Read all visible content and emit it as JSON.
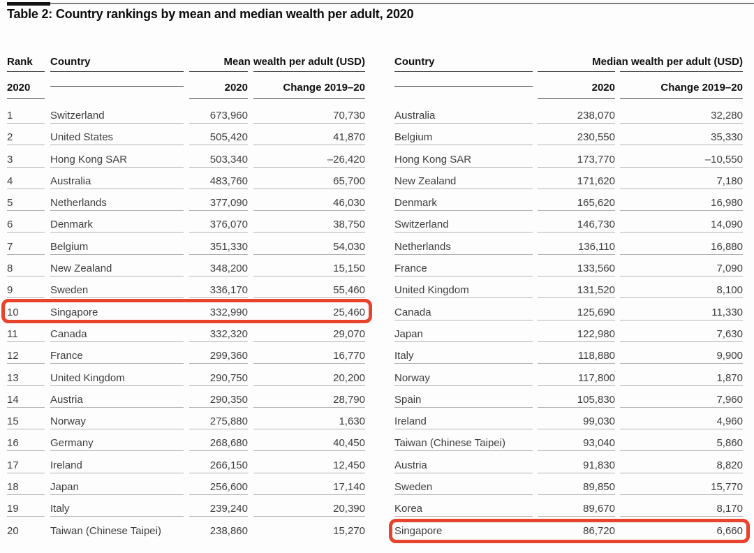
{
  "title": "Table 2: Country rankings by mean and median wealth per adult, 2020",
  "highlight_color": "#e8432d",
  "left_table": {
    "headers": {
      "rank": "Rank",
      "country": "Country",
      "group": "Mean wealth per adult (USD)",
      "rank_sub": "2020",
      "year": "2020",
      "change": "Change 2019–20"
    },
    "highlight_row_index": 9,
    "rows": [
      {
        "rank": "1",
        "country": "Switzerland",
        "value": "673,960",
        "change": "70,730"
      },
      {
        "rank": "2",
        "country": "United States",
        "value": "505,420",
        "change": "41,870"
      },
      {
        "rank": "3",
        "country": "Hong Kong SAR",
        "value": "503,340",
        "change": "–26,420"
      },
      {
        "rank": "4",
        "country": "Australia",
        "value": "483,760",
        "change": "65,700"
      },
      {
        "rank": "5",
        "country": "Netherlands",
        "value": "377,090",
        "change": "46,030"
      },
      {
        "rank": "6",
        "country": "Denmark",
        "value": "376,070",
        "change": "38,750"
      },
      {
        "rank": "7",
        "country": "Belgium",
        "value": "351,330",
        "change": "54,030"
      },
      {
        "rank": "8",
        "country": "New Zealand",
        "value": "348,200",
        "change": "15,150"
      },
      {
        "rank": "9",
        "country": "Sweden",
        "value": "336,170",
        "change": "55,460"
      },
      {
        "rank": "10",
        "country": "Singapore",
        "value": "332,990",
        "change": "25,460"
      },
      {
        "rank": "11",
        "country": "Canada",
        "value": "332,320",
        "change": "29,070"
      },
      {
        "rank": "12",
        "country": "France",
        "value": "299,360",
        "change": "16,770"
      },
      {
        "rank": "13",
        "country": "United Kingdom",
        "value": "290,750",
        "change": "20,200"
      },
      {
        "rank": "14",
        "country": "Austria",
        "value": "290,350",
        "change": "28,790"
      },
      {
        "rank": "15",
        "country": "Norway",
        "value": "275,880",
        "change": "1,630"
      },
      {
        "rank": "16",
        "country": "Germany",
        "value": "268,680",
        "change": "40,450"
      },
      {
        "rank": "17",
        "country": "Ireland",
        "value": "266,150",
        "change": "12,450"
      },
      {
        "rank": "18",
        "country": "Japan",
        "value": "256,600",
        "change": "17,140"
      },
      {
        "rank": "19",
        "country": "Italy",
        "value": "239,240",
        "change": "20,390"
      },
      {
        "rank": "20",
        "country": "Taiwan (Chinese Taipei)",
        "value": "238,860",
        "change": "15,270"
      }
    ]
  },
  "right_table": {
    "headers": {
      "country": "Country",
      "group": "Median wealth per adult (USD)",
      "year": "2020",
      "change": "Change 2019–20"
    },
    "highlight_row_index": 19,
    "rows": [
      {
        "country": "Australia",
        "value": "238,070",
        "change": "32,280"
      },
      {
        "country": "Belgium",
        "value": "230,550",
        "change": "35,330"
      },
      {
        "country": "Hong Kong SAR",
        "value": "173,770",
        "change": "–10,550"
      },
      {
        "country": "New Zealand",
        "value": "171,620",
        "change": "7,180"
      },
      {
        "country": "Denmark",
        "value": "165,620",
        "change": "16,980"
      },
      {
        "country": "Switzerland",
        "value": "146,730",
        "change": "14,090"
      },
      {
        "country": "Netherlands",
        "value": "136,110",
        "change": "16,880"
      },
      {
        "country": "France",
        "value": "133,560",
        "change": "7,090"
      },
      {
        "country": "United Kingdom",
        "value": "131,520",
        "change": "8,100"
      },
      {
        "country": "Canada",
        "value": "125,690",
        "change": "11,330"
      },
      {
        "country": "Japan",
        "value": "122,980",
        "change": "7,630"
      },
      {
        "country": "Italy",
        "value": "118,880",
        "change": "9,900"
      },
      {
        "country": "Norway",
        "value": "117,800",
        "change": "1,870"
      },
      {
        "country": "Spain",
        "value": "105,830",
        "change": "7,960"
      },
      {
        "country": "Ireland",
        "value": "99,030",
        "change": "4,960"
      },
      {
        "country": "Taiwan (Chinese Taipei)",
        "value": "93,040",
        "change": "5,860"
      },
      {
        "country": "Austria",
        "value": "91,830",
        "change": "8,820"
      },
      {
        "country": "Sweden",
        "value": "89,850",
        "change": "15,770"
      },
      {
        "country": "Korea",
        "value": "89,670",
        "change": "8,170"
      },
      {
        "country": "Singapore",
        "value": "86,720",
        "change": "6,660"
      }
    ]
  }
}
